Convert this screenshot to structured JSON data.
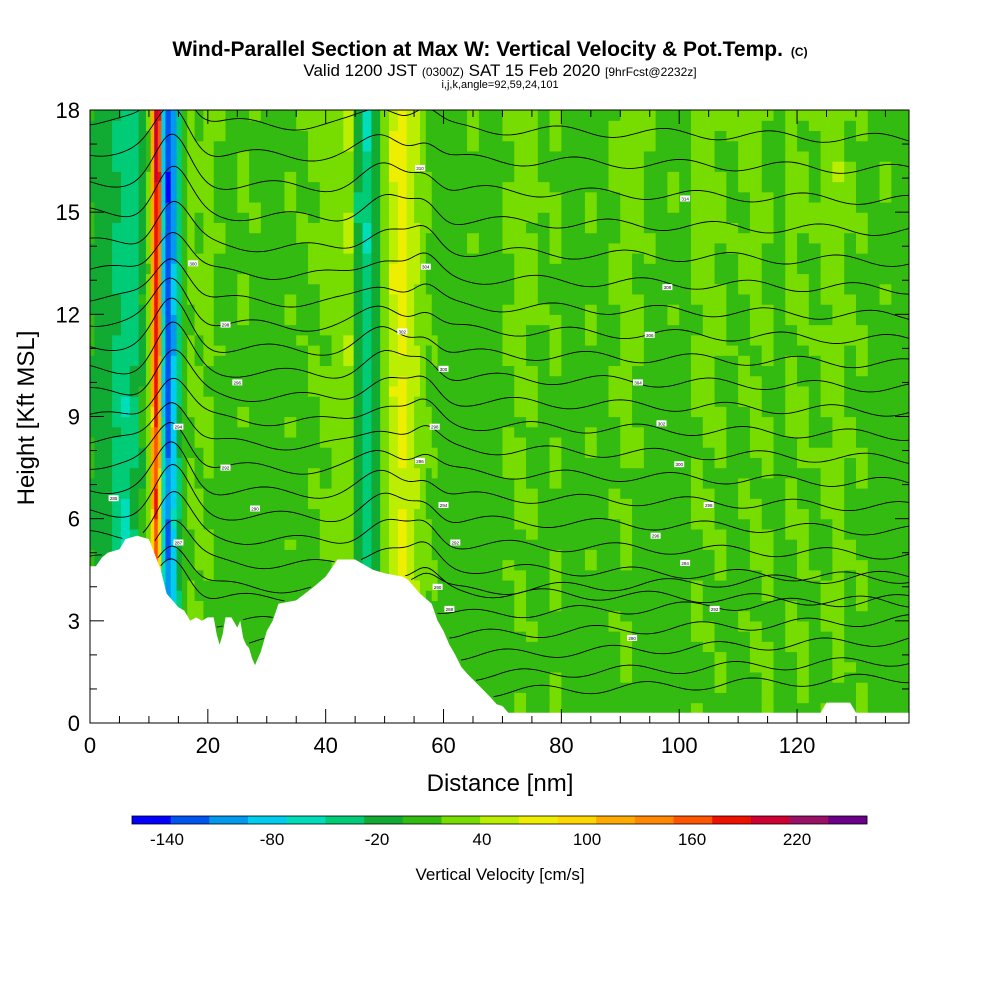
{
  "chart_data": {
    "type": "heatmap",
    "title": "Wind-Parallel Section at Max W: Vertical Velocity & Pot.Temp.",
    "title_mark": "(C)",
    "subtitle_parts": [
      "Valid 1200 JST",
      "(0300Z)",
      "SAT 15 Feb 2020",
      "[9hrFcst@2232z]"
    ],
    "subtitle2": "i,j,k,angle=92,59,24,101",
    "xlabel": "Distance [nm]",
    "ylabel": "Height [Kft MSL]",
    "xlim": [
      0,
      139
    ],
    "ylim": [
      0,
      18
    ],
    "x_ticks": [
      "0",
      "20",
      "40",
      "60",
      "80",
      "100",
      "120"
    ],
    "x_tick_values": [
      0,
      20,
      40,
      60,
      80,
      100,
      120
    ],
    "y_ticks": [
      "0",
      "3",
      "6",
      "9",
      "12",
      "15",
      "18"
    ],
    "y_tick_values": [
      0,
      3,
      6,
      9,
      12,
      15,
      18
    ],
    "colorbar": {
      "label": "Vertical Velocity [cm/s]",
      "ticks": [
        "-140",
        "-80",
        "-20",
        "40",
        "100",
        "160",
        "220"
      ],
      "tick_values": [
        -140,
        -80,
        -20,
        40,
        100,
        160,
        220
      ],
      "min": -160,
      "max": 260,
      "colors": [
        "#0000ff",
        "#0055ee",
        "#0099ee",
        "#00ccee",
        "#00ddbb",
        "#00cc77",
        "#11aa33",
        "#33bb11",
        "#77dd00",
        "#bbee00",
        "#eeee00",
        "#ffd700",
        "#ffaa00",
        "#ff8800",
        "#ff5500",
        "#ee1100",
        "#cc0033",
        "#991166",
        "#6a0088"
      ]
    },
    "terrain_profile": {
      "x": [
        0,
        1,
        2,
        3,
        5,
        6,
        8,
        10,
        11,
        12,
        13,
        14,
        15,
        16,
        17,
        18,
        19,
        20,
        21,
        21.5,
        22,
        22.5,
        23,
        24,
        25,
        25.5,
        26,
        26.5,
        27,
        27.5,
        28,
        29,
        30,
        31,
        32,
        35,
        38,
        40,
        42,
        45,
        48,
        50,
        53,
        54,
        56,
        58,
        59,
        60,
        61,
        62,
        63,
        64,
        66,
        68,
        69,
        70,
        71,
        75,
        78,
        124,
        125,
        129,
        130,
        139
      ],
      "height": [
        4.6,
        4.6,
        4.85,
        5.0,
        5.1,
        5.4,
        5.5,
        5.4,
        4.95,
        4.5,
        3.8,
        3.6,
        3.4,
        3.3,
        3.0,
        3.1,
        3.0,
        3.1,
        3.1,
        2.6,
        2.3,
        2.6,
        3.1,
        3.1,
        2.8,
        3.0,
        2.5,
        2.3,
        2.2,
        1.9,
        1.7,
        2.1,
        2.7,
        3.0,
        3.5,
        3.6,
        4.0,
        4.3,
        4.8,
        4.8,
        4.5,
        4.4,
        4.3,
        4.2,
        3.8,
        3.5,
        3.0,
        2.7,
        2.3,
        2.0,
        1.65,
        1.45,
        1.1,
        0.75,
        0.55,
        0.5,
        0.3,
        0.3,
        0.3,
        0.3,
        0.6,
        0.6,
        0.3,
        0.3
      ]
    },
    "velocity_columns": {
      "x": [
        0,
        1.5,
        3,
        4.5,
        6,
        7.5,
        9,
        10,
        10.6,
        11.2,
        11.8,
        12.4,
        13.2,
        14.2,
        15.2,
        16,
        17,
        18.5,
        20,
        22,
        24,
        26,
        28,
        30,
        32,
        34,
        36,
        38,
        40,
        42,
        44,
        45.5,
        47,
        48.5,
        50,
        51.5,
        53,
        54.5,
        55.5,
        56.5,
        57.5,
        58.5,
        59.5,
        61,
        63,
        65,
        67,
        69,
        71,
        73,
        75,
        77,
        79,
        81,
        83,
        85,
        87,
        89,
        91,
        93,
        95,
        97,
        99,
        101,
        103,
        105,
        107,
        109,
        111,
        113,
        115,
        117,
        119,
        121,
        123,
        125,
        127,
        129,
        131,
        133,
        135,
        137,
        139
      ],
      "w_low": [
        -5,
        -10,
        -20,
        -40,
        -55,
        -20,
        10,
        30,
        100,
        150,
        60,
        -60,
        -100,
        -60,
        -20,
        5,
        15,
        20,
        10,
        5,
        0,
        5,
        0,
        5,
        0,
        10,
        5,
        10,
        15,
        20,
        25,
        -10,
        -30,
        -20,
        20,
        50,
        60,
        45,
        35,
        25,
        20,
        15,
        10,
        5,
        5,
        0,
        5,
        5,
        10,
        15,
        10,
        5,
        15,
        10,
        5,
        10,
        5,
        10,
        15,
        5,
        5,
        10,
        5,
        10,
        15,
        10,
        15,
        5,
        10,
        15,
        20,
        10,
        15,
        20,
        10,
        15,
        20,
        10,
        15,
        10,
        5,
        5,
        5
      ],
      "w_high": [
        -10,
        -15,
        -20,
        -25,
        -35,
        -40,
        -20,
        20,
        120,
        200,
        180,
        -80,
        -140,
        -110,
        -40,
        10,
        25,
        20,
        30,
        15,
        10,
        20,
        15,
        10,
        5,
        15,
        15,
        20,
        25,
        35,
        40,
        -25,
        -50,
        -20,
        30,
        60,
        70,
        55,
        40,
        25,
        15,
        10,
        10,
        5,
        10,
        15,
        10,
        5,
        20,
        30,
        25,
        15,
        20,
        10,
        5,
        15,
        10,
        20,
        30,
        25,
        15,
        10,
        15,
        10,
        25,
        35,
        20,
        15,
        20,
        25,
        15,
        10,
        25,
        20,
        15,
        25,
        35,
        20,
        15,
        10,
        15,
        10,
        5
      ]
    },
    "theta_base_heights": [
      0.5,
      1.0,
      1.6,
      2.2,
      2.8,
      3.5,
      4.1,
      4.8,
      5.5,
      6.2,
      6.9,
      7.6,
      8.3,
      9.0,
      9.7,
      10.4,
      11.1,
      11.8,
      12.5,
      13.3,
      14.1,
      15.0,
      15.9,
      16.8,
      17.7
    ],
    "theta_contour_labels": [
      {
        "text": "285",
        "x": 4,
        "y": 6.6
      },
      {
        "text": "300",
        "x": 17.5,
        "y": 13.5
      },
      {
        "text": "298",
        "x": 23,
        "y": 11.7
      },
      {
        "text": "296",
        "x": 25,
        "y": 10.0
      },
      {
        "text": "294",
        "x": 15,
        "y": 8.7
      },
      {
        "text": "292",
        "x": 23,
        "y": 7.5
      },
      {
        "text": "290",
        "x": 28,
        "y": 6.3
      },
      {
        "text": "287",
        "x": 15,
        "y": 5.3
      },
      {
        "text": "310",
        "x": 56,
        "y": 16.3
      },
      {
        "text": "304",
        "x": 57,
        "y": 13.4
      },
      {
        "text": "302",
        "x": 53,
        "y": 11.5
      },
      {
        "text": "300",
        "x": 60,
        "y": 10.4
      },
      {
        "text": "298",
        "x": 58.5,
        "y": 8.7
      },
      {
        "text": "296",
        "x": 56,
        "y": 7.7
      },
      {
        "text": "294",
        "x": 60,
        "y": 6.4
      },
      {
        "text": "292",
        "x": 62,
        "y": 5.3
      },
      {
        "text": "290",
        "x": 59,
        "y": 4.0
      },
      {
        "text": "288",
        "x": 61,
        "y": 3.35
      },
      {
        "text": "314",
        "x": 101,
        "y": 15.4
      },
      {
        "text": "308",
        "x": 98,
        "y": 12.8
      },
      {
        "text": "306",
        "x": 95,
        "y": 11.4
      },
      {
        "text": "304",
        "x": 93,
        "y": 10.0
      },
      {
        "text": "302",
        "x": 97,
        "y": 8.8
      },
      {
        "text": "300",
        "x": 100,
        "y": 7.6
      },
      {
        "text": "298",
        "x": 105,
        "y": 6.4
      },
      {
        "text": "296",
        "x": 96,
        "y": 5.5
      },
      {
        "text": "294",
        "x": 101,
        "y": 4.7
      },
      {
        "text": "292",
        "x": 106,
        "y": 3.35
      },
      {
        "text": "290",
        "x": 92,
        "y": 2.5
      }
    ]
  }
}
